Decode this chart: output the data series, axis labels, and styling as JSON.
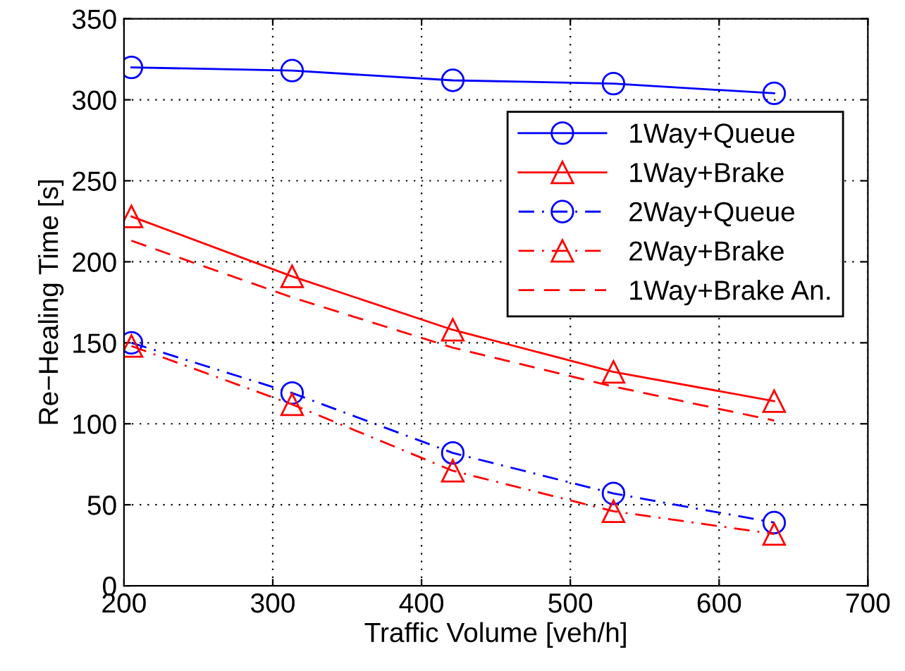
{
  "chart_data": {
    "type": "line",
    "xlabel": "Traffic Volume [veh/h]",
    "ylabel": "Re−Healing Time [s]",
    "x": [
      205,
      313,
      421,
      529,
      637
    ],
    "xlim": [
      200,
      700
    ],
    "xticks": [
      200,
      300,
      400,
      500,
      600,
      700
    ],
    "ylim": [
      0,
      350
    ],
    "yticks": [
      0,
      50,
      100,
      150,
      200,
      250,
      300,
      350
    ],
    "grid": true,
    "legend": "top right",
    "series": [
      {
        "name": "1Way+Queue",
        "color": "#0000ff",
        "marker": "circle",
        "line_style": "solid",
        "values": [
          320,
          318,
          312,
          310,
          304
        ]
      },
      {
        "name": "1Way+Brake",
        "color": "#ff0000",
        "marker": "triangle",
        "line_style": "solid",
        "values": [
          228,
          191,
          158,
          132,
          114
        ]
      },
      {
        "name": "2Way+Queue",
        "color": "#0000ff",
        "marker": "circle",
        "line_style": "dashdot",
        "values": [
          150,
          119,
          82,
          57,
          39
        ]
      },
      {
        "name": "2Way+Brake",
        "color": "#ff0000",
        "marker": "triangle",
        "line_style": "dashdot",
        "values": [
          148,
          112,
          71,
          46,
          32
        ]
      },
      {
        "name": "1Way+Brake An.",
        "color": "#ff0000",
        "marker": "none",
        "line_style": "dashed",
        "values": [
          213,
          178,
          147,
          123,
          102
        ]
      }
    ]
  }
}
